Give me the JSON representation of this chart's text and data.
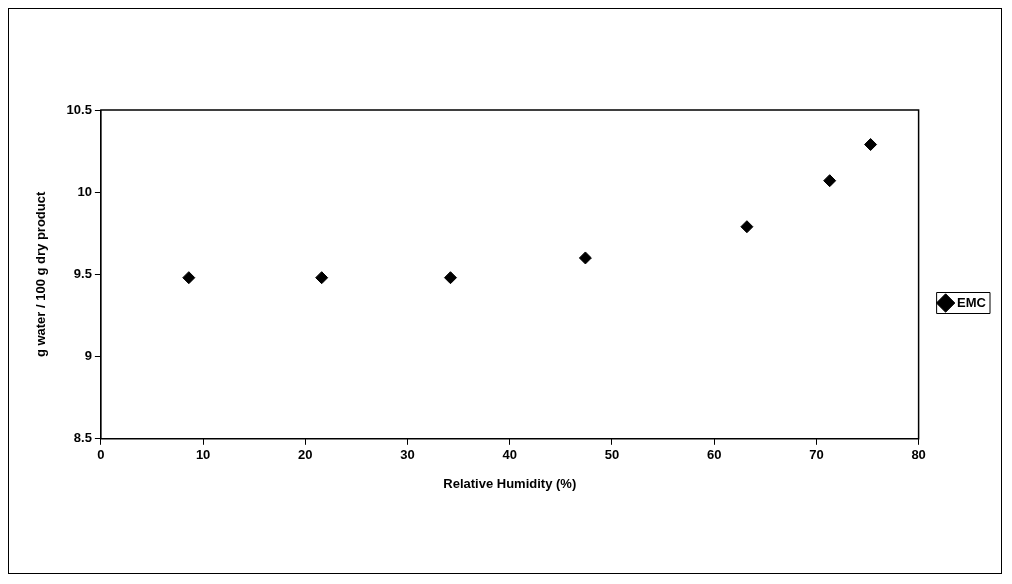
{
  "chart_data": {
    "type": "scatter",
    "xlabel": "Relative Humidity (%)",
    "ylabel": "g water / 100 g dry product",
    "x": [
      8.6,
      21.6,
      34.2,
      47.4,
      63.2,
      71.3,
      75.3
    ],
    "series": [
      {
        "name": "EMC",
        "color": "#000000",
        "values": [
          9.48,
          9.48,
          9.48,
          9.6,
          9.79,
          10.07,
          10.29
        ]
      }
    ],
    "xlim": [
      0,
      80
    ],
    "xticks": [
      0,
      10,
      20,
      30,
      40,
      50,
      60,
      70,
      80
    ],
    "ylim": [
      8.5,
      10.5
    ],
    "yticks": [
      8.5,
      9,
      9.5,
      10,
      10.5
    ],
    "grid": false,
    "legend": "right",
    "marker": "diamond"
  }
}
